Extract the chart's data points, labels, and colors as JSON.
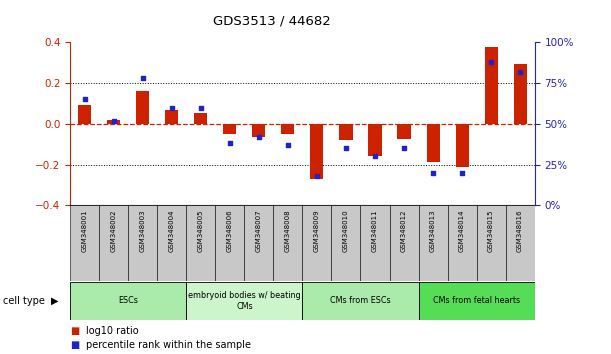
{
  "title": "GDS3513 / 44682",
  "samples": [
    "GSM348001",
    "GSM348002",
    "GSM348003",
    "GSM348004",
    "GSM348005",
    "GSM348006",
    "GSM348007",
    "GSM348008",
    "GSM348009",
    "GSM348010",
    "GSM348011",
    "GSM348012",
    "GSM348013",
    "GSM348014",
    "GSM348015",
    "GSM348016"
  ],
  "log10_ratio": [
    0.095,
    0.02,
    0.16,
    0.07,
    0.055,
    -0.05,
    -0.065,
    -0.05,
    -0.27,
    -0.08,
    -0.16,
    -0.075,
    -0.185,
    -0.21,
    0.38,
    0.295
  ],
  "percentile_rank": [
    65,
    52,
    78,
    60,
    60,
    38,
    42,
    37,
    18,
    35,
    30,
    35,
    20,
    20,
    88,
    82
  ],
  "cell_type_groups": [
    {
      "label": "ESCs",
      "start": 0,
      "end": 4,
      "color": "#aaeaaa"
    },
    {
      "label": "embryoid bodies w/ beating\nCMs",
      "start": 4,
      "end": 8,
      "color": "#ccf5cc"
    },
    {
      "label": "CMs from ESCs",
      "start": 8,
      "end": 12,
      "color": "#aaeaaa"
    },
    {
      "label": "CMs from fetal hearts",
      "start": 12,
      "end": 16,
      "color": "#55dd55"
    }
  ],
  "ylim_left": [
    -0.4,
    0.4
  ],
  "ylim_right": [
    0,
    100
  ],
  "yticks_left": [
    -0.4,
    -0.2,
    0.0,
    0.2,
    0.4
  ],
  "yticks_right": [
    0,
    25,
    50,
    75,
    100
  ],
  "bar_color_red": "#cc2200",
  "dot_color_blue": "#2222cc",
  "legend_red": "log10 ratio",
  "legend_blue": "percentile rank within the sample",
  "cell_type_label": "cell type"
}
